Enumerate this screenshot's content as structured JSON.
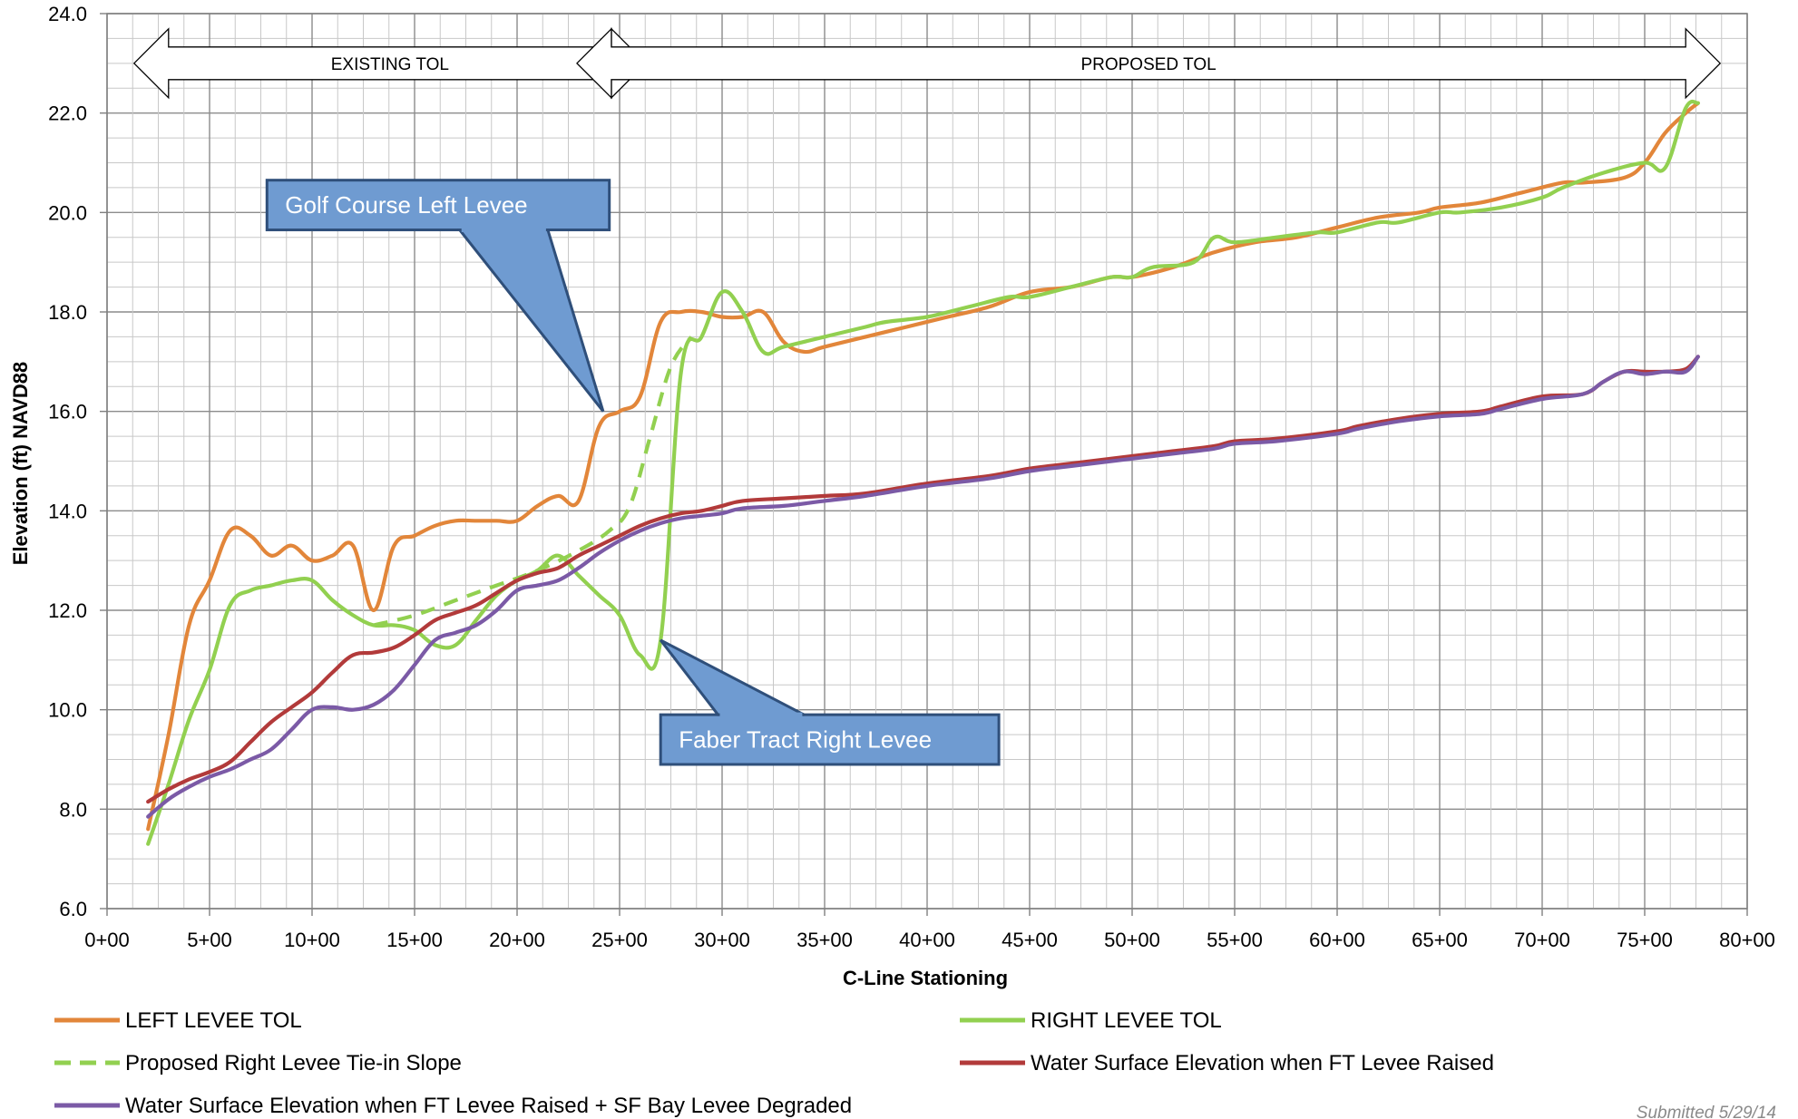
{
  "chart_data": {
    "type": "line",
    "xlabel": "C-Line Stationing",
    "ylabel": "Elevation (ft) NAVD88",
    "xlim": [
      0,
      80
    ],
    "ylim": [
      6,
      24
    ],
    "x_ticks": [
      {
        "v": 0,
        "label": "0+00"
      },
      {
        "v": 5,
        "label": "5+00"
      },
      {
        "v": 10,
        "label": "10+00"
      },
      {
        "v": 15,
        "label": "15+00"
      },
      {
        "v": 20,
        "label": "20+00"
      },
      {
        "v": 25,
        "label": "25+00"
      },
      {
        "v": 30,
        "label": "30+00"
      },
      {
        "v": 35,
        "label": "35+00"
      },
      {
        "v": 40,
        "label": "40+00"
      },
      {
        "v": 45,
        "label": "45+00"
      },
      {
        "v": 50,
        "label": "50+00"
      },
      {
        "v": 55,
        "label": "55+00"
      },
      {
        "v": 60,
        "label": "60+00"
      },
      {
        "v": 65,
        "label": "65+00"
      },
      {
        "v": 70,
        "label": "70+00"
      },
      {
        "v": 75,
        "label": "75+00"
      },
      {
        "v": 80,
        "label": "80+00"
      }
    ],
    "y_ticks": [
      {
        "v": 6,
        "label": "6.0"
      },
      {
        "v": 8,
        "label": "8.0"
      },
      {
        "v": 10,
        "label": "10.0"
      },
      {
        "v": 12,
        "label": "12.0"
      },
      {
        "v": 14,
        "label": "14.0"
      },
      {
        "v": 16,
        "label": "16.0"
      },
      {
        "v": 18,
        "label": "18.0"
      },
      {
        "v": 20,
        "label": "20.0"
      },
      {
        "v": 22,
        "label": "22.0"
      },
      {
        "v": 24,
        "label": "24.0"
      }
    ],
    "grid": true,
    "legend_position": "bottom",
    "series": [
      {
        "name": "LEFT LEVEE TOL",
        "color": "#E2863A",
        "dash": false,
        "points": [
          [
            2,
            7.6
          ],
          [
            3,
            9.5
          ],
          [
            4,
            11.7
          ],
          [
            5,
            12.6
          ],
          [
            6,
            13.6
          ],
          [
            7,
            13.5
          ],
          [
            8,
            13.1
          ],
          [
            9,
            13.3
          ],
          [
            10,
            13.0
          ],
          [
            11,
            13.1
          ],
          [
            12,
            13.3
          ],
          [
            13,
            12.0
          ],
          [
            14,
            13.3
          ],
          [
            15,
            13.5
          ],
          [
            16,
            13.7
          ],
          [
            17,
            13.8
          ],
          [
            18,
            13.8
          ],
          [
            19,
            13.8
          ],
          [
            20,
            13.8
          ],
          [
            21,
            14.1
          ],
          [
            22,
            14.3
          ],
          [
            23,
            14.2
          ],
          [
            24,
            15.7
          ],
          [
            25,
            16.0
          ],
          [
            26,
            16.3
          ],
          [
            27,
            17.8
          ],
          [
            28,
            18.0
          ],
          [
            29,
            18.0
          ],
          [
            30,
            17.9
          ],
          [
            31,
            17.9
          ],
          [
            32,
            18.0
          ],
          [
            33,
            17.4
          ],
          [
            34,
            17.2
          ],
          [
            35,
            17.3
          ],
          [
            37,
            17.5
          ],
          [
            39,
            17.7
          ],
          [
            41,
            17.9
          ],
          [
            43,
            18.1
          ],
          [
            45,
            18.4
          ],
          [
            47,
            18.5
          ],
          [
            49,
            18.7
          ],
          [
            50,
            18.7
          ],
          [
            52,
            18.9
          ],
          [
            54,
            19.2
          ],
          [
            56,
            19.4
          ],
          [
            58,
            19.5
          ],
          [
            60,
            19.7
          ],
          [
            62,
            19.9
          ],
          [
            64,
            20.0
          ],
          [
            65,
            20.1
          ],
          [
            67,
            20.2
          ],
          [
            69,
            20.4
          ],
          [
            71,
            20.6
          ],
          [
            72,
            20.6
          ],
          [
            74,
            20.7
          ],
          [
            75,
            21.0
          ],
          [
            76,
            21.6
          ],
          [
            77,
            22.0
          ],
          [
            77.6,
            22.2
          ]
        ]
      },
      {
        "name": "RIGHT LEVEE TOL",
        "color": "#92D050",
        "dash": false,
        "points": [
          [
            2,
            7.3
          ],
          [
            3,
            8.5
          ],
          [
            4,
            9.8
          ],
          [
            5,
            10.8
          ],
          [
            6,
            12.1
          ],
          [
            7,
            12.4
          ],
          [
            8,
            12.5
          ],
          [
            9,
            12.6
          ],
          [
            10,
            12.6
          ],
          [
            11,
            12.2
          ],
          [
            12,
            11.9
          ],
          [
            13,
            11.7
          ],
          [
            14,
            11.7
          ],
          [
            15,
            11.6
          ],
          [
            16,
            11.3
          ],
          [
            17,
            11.3
          ],
          [
            18,
            11.8
          ],
          [
            19,
            12.3
          ],
          [
            20,
            12.6
          ],
          [
            21,
            12.8
          ],
          [
            22,
            13.1
          ],
          [
            23,
            12.7
          ],
          [
            24,
            12.3
          ],
          [
            25,
            11.9
          ],
          [
            26,
            11.1
          ],
          [
            27,
            11.4
          ],
          [
            28,
            16.8
          ],
          [
            29,
            17.5
          ],
          [
            30,
            18.4
          ],
          [
            31,
            18.0
          ],
          [
            32,
            17.2
          ],
          [
            33,
            17.3
          ],
          [
            35,
            17.5
          ],
          [
            37,
            17.7
          ],
          [
            38,
            17.8
          ],
          [
            40,
            17.9
          ],
          [
            42,
            18.1
          ],
          [
            44,
            18.3
          ],
          [
            45,
            18.3
          ],
          [
            47,
            18.5
          ],
          [
            49,
            18.7
          ],
          [
            50,
            18.7
          ],
          [
            51,
            18.9
          ],
          [
            53,
            19.0
          ],
          [
            54,
            19.5
          ],
          [
            55,
            19.4
          ],
          [
            57,
            19.5
          ],
          [
            59,
            19.6
          ],
          [
            60,
            19.6
          ],
          [
            62,
            19.8
          ],
          [
            63,
            19.8
          ],
          [
            65,
            20.0
          ],
          [
            66,
            20.0
          ],
          [
            68,
            20.1
          ],
          [
            70,
            20.3
          ],
          [
            71,
            20.5
          ],
          [
            73,
            20.8
          ],
          [
            75,
            21.0
          ],
          [
            76,
            20.9
          ],
          [
            77,
            22.1
          ],
          [
            77.6,
            22.2
          ]
        ]
      },
      {
        "name": "Proposed Right Levee Tie-in Slope",
        "color": "#92D050",
        "dash": true,
        "points": [
          [
            13,
            11.7
          ],
          [
            15,
            11.9
          ],
          [
            17,
            12.2
          ],
          [
            19,
            12.5
          ],
          [
            21,
            12.8
          ],
          [
            23,
            13.2
          ],
          [
            24.5,
            13.6
          ],
          [
            25.5,
            14.1
          ],
          [
            26.5,
            15.5
          ],
          [
            27.5,
            16.9
          ],
          [
            28.5,
            17.5
          ]
        ]
      },
      {
        "name": "Water Surface Elevation when FT Levee Raised",
        "color": "#B23A3A",
        "dash": false,
        "points": [
          [
            2,
            8.15
          ],
          [
            3,
            8.4
          ],
          [
            4,
            8.6
          ],
          [
            5,
            8.75
          ],
          [
            6,
            8.95
          ],
          [
            7,
            9.35
          ],
          [
            8,
            9.75
          ],
          [
            9,
            10.05
          ],
          [
            10,
            10.35
          ],
          [
            11,
            10.75
          ],
          [
            12,
            11.1
          ],
          [
            13,
            11.15
          ],
          [
            14,
            11.25
          ],
          [
            15,
            11.5
          ],
          [
            16,
            11.8
          ],
          [
            17,
            11.95
          ],
          [
            18,
            12.1
          ],
          [
            19,
            12.35
          ],
          [
            20,
            12.6
          ],
          [
            21,
            12.75
          ],
          [
            22,
            12.85
          ],
          [
            23,
            13.1
          ],
          [
            24,
            13.3
          ],
          [
            25,
            13.5
          ],
          [
            26,
            13.7
          ],
          [
            27,
            13.85
          ],
          [
            28,
            13.95
          ],
          [
            29,
            14.0
          ],
          [
            30,
            14.1
          ],
          [
            31,
            14.2
          ],
          [
            33,
            14.25
          ],
          [
            35,
            14.3
          ],
          [
            37,
            14.35
          ],
          [
            40,
            14.55
          ],
          [
            43,
            14.7
          ],
          [
            45,
            14.85
          ],
          [
            47,
            14.95
          ],
          [
            50,
            15.1
          ],
          [
            52,
            15.2
          ],
          [
            54,
            15.3
          ],
          [
            55,
            15.4
          ],
          [
            57,
            15.45
          ],
          [
            60,
            15.6
          ],
          [
            61,
            15.7
          ],
          [
            63,
            15.85
          ],
          [
            65,
            15.95
          ],
          [
            67,
            16.0
          ],
          [
            68,
            16.1
          ],
          [
            70,
            16.3
          ],
          [
            72,
            16.35
          ],
          [
            73,
            16.6
          ],
          [
            74,
            16.8
          ],
          [
            75,
            16.8
          ],
          [
            76,
            16.8
          ],
          [
            77,
            16.85
          ],
          [
            77.6,
            17.1
          ]
        ]
      },
      {
        "name": "Water Surface Elevation when FT Levee Raised + SF Bay Levee Degraded",
        "color": "#7B5AA6",
        "dash": false,
        "points": [
          [
            2,
            7.85
          ],
          [
            3,
            8.2
          ],
          [
            4,
            8.45
          ],
          [
            5,
            8.65
          ],
          [
            6,
            8.8
          ],
          [
            7,
            9.0
          ],
          [
            8,
            9.2
          ],
          [
            9,
            9.6
          ],
          [
            10,
            10.0
          ],
          [
            11,
            10.05
          ],
          [
            12,
            10.0
          ],
          [
            13,
            10.1
          ],
          [
            14,
            10.4
          ],
          [
            15,
            10.9
          ],
          [
            16,
            11.4
          ],
          [
            17,
            11.55
          ],
          [
            18,
            11.7
          ],
          [
            19,
            12.0
          ],
          [
            20,
            12.4
          ],
          [
            21,
            12.5
          ],
          [
            22,
            12.6
          ],
          [
            23,
            12.85
          ],
          [
            24,
            13.15
          ],
          [
            25,
            13.4
          ],
          [
            26,
            13.6
          ],
          [
            27,
            13.75
          ],
          [
            28,
            13.85
          ],
          [
            29,
            13.9
          ],
          [
            30,
            13.95
          ],
          [
            31,
            14.05
          ],
          [
            33,
            14.1
          ],
          [
            35,
            14.2
          ],
          [
            37,
            14.3
          ],
          [
            40,
            14.5
          ],
          [
            43,
            14.65
          ],
          [
            45,
            14.8
          ],
          [
            47,
            14.9
          ],
          [
            50,
            15.05
          ],
          [
            52,
            15.15
          ],
          [
            54,
            15.25
          ],
          [
            55,
            15.35
          ],
          [
            57,
            15.4
          ],
          [
            60,
            15.55
          ],
          [
            61,
            15.65
          ],
          [
            63,
            15.8
          ],
          [
            65,
            15.9
          ],
          [
            67,
            15.95
          ],
          [
            68,
            16.05
          ],
          [
            70,
            16.25
          ],
          [
            72,
            16.35
          ],
          [
            73,
            16.6
          ],
          [
            74,
            16.8
          ],
          [
            75,
            16.75
          ],
          [
            76,
            16.8
          ],
          [
            77,
            16.8
          ],
          [
            77.6,
            17.1
          ]
        ]
      }
    ],
    "annotations": [
      {
        "kind": "band",
        "text": "EXISTING TOL",
        "x_from": 3,
        "x_to": 24.6,
        "y": 23.0
      },
      {
        "kind": "band",
        "text": "PROPOSED TOL",
        "x_from": 24.6,
        "x_to": 77,
        "y": 23.0
      },
      {
        "kind": "callout",
        "text": "Golf Course Left Levee",
        "x_from": 7.8,
        "x_to": 24.5,
        "y_top": 20.65,
        "y_bottom": 19.65,
        "tip": [
          24.2,
          16.0
        ],
        "base": [
          17.2,
          19.65,
          21.5,
          19.65
        ]
      },
      {
        "kind": "callout",
        "text": "Faber Tract Right Levee",
        "x_from": 27.0,
        "x_to": 43.5,
        "y_top": 9.9,
        "y_bottom": 8.9,
        "tip": [
          27.0,
          11.4
        ],
        "base": [
          29.8,
          9.9,
          34.0,
          9.9
        ]
      }
    ],
    "note": "Submitted 5/29/14"
  }
}
